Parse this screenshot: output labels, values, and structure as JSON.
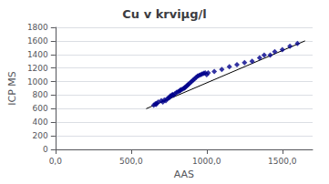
{
  "chart_data": {
    "type": "scatter",
    "title": "Cu v krviμg/l",
    "xlabel": "AAS",
    "ylabel": "ICP MS",
    "xlim": [
      0,
      1700
    ],
    "ylim": [
      0,
      1800
    ],
    "xticks": [
      {
        "value": 0,
        "label": "0,0"
      },
      {
        "value": 500,
        "label": "500,0"
      },
      {
        "value": 1000,
        "label": "1000,0"
      },
      {
        "value": 1500,
        "label": "1500,0"
      }
    ],
    "yticks": [
      0,
      200,
      400,
      600,
      800,
      1000,
      1200,
      1400,
      1600,
      1800
    ],
    "grid": "y",
    "series": [
      {
        "type": "scatter",
        "color": "#00008B",
        "marker": "diamond",
        "x": [
          650,
          660,
          665,
          670,
          680,
          700,
          710,
          720,
          730,
          740,
          750,
          755,
          760,
          770,
          775,
          780,
          790,
          800,
          810,
          820,
          825,
          830,
          840,
          850,
          855,
          860,
          870,
          875,
          880,
          890,
          900,
          910,
          920,
          930,
          940,
          950,
          960,
          970,
          980,
          990,
          1000,
          1010,
          1050,
          1100,
          1150,
          1200,
          1250,
          1300,
          1350,
          1380,
          1420,
          1450,
          1500,
          1550,
          1600
        ],
        "values": [
          650,
          670,
          660,
          680,
          700,
          720,
          700,
          730,
          720,
          750,
          760,
          770,
          790,
          800,
          810,
          800,
          820,
          840,
          850,
          860,
          870,
          880,
          890,
          900,
          910,
          920,
          940,
          950,
          960,
          980,
          1000,
          1020,
          1040,
          1060,
          1080,
          1090,
          1100,
          1110,
          1120,
          1130,
          1100,
          1130,
          1150,
          1180,
          1220,
          1250,
          1280,
          1300,
          1350,
          1390,
          1390,
          1440,
          1470,
          1520,
          1560
        ]
      },
      {
        "type": "line",
        "color": "#000000",
        "x": [
          600,
          1650
        ],
        "values": [
          600,
          1600
        ]
      }
    ]
  }
}
